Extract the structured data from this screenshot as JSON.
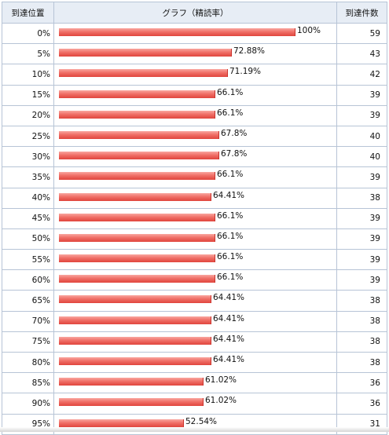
{
  "header": {
    "col_position": "到達位置",
    "col_graph": "グラフ（精読率）",
    "col_count": "到達件数"
  },
  "bar_color": "#f07068",
  "chart_data": {
    "type": "bar",
    "orientation": "horizontal",
    "columns": [
      "到達位置",
      "グラフ（精読率）",
      "到達件数"
    ],
    "categories": [
      "0%",
      "5%",
      "10%",
      "15%",
      "20%",
      "25%",
      "30%",
      "35%",
      "40%",
      "45%",
      "50%",
      "55%",
      "60%",
      "65%",
      "70%",
      "75%",
      "80%",
      "85%",
      "90%",
      "95%"
    ],
    "value_labels": [
      "100%",
      "72.88%",
      "71.19%",
      "66.1%",
      "66.1%",
      "67.8%",
      "67.8%",
      "66.1%",
      "64.41%",
      "66.1%",
      "66.1%",
      "66.1%",
      "66.1%",
      "64.41%",
      "64.41%",
      "64.41%",
      "64.41%",
      "61.02%",
      "61.02%",
      "52.54%"
    ],
    "values": [
      100,
      72.88,
      71.19,
      66.1,
      66.1,
      67.8,
      67.8,
      66.1,
      64.41,
      66.1,
      66.1,
      66.1,
      66.1,
      64.41,
      64.41,
      64.41,
      64.41,
      61.02,
      61.02,
      52.54
    ],
    "counts": [
      "59",
      "43",
      "42",
      "39",
      "39",
      "40",
      "40",
      "39",
      "38",
      "39",
      "39",
      "39",
      "39",
      "38",
      "38",
      "38",
      "38",
      "36",
      "36",
      "31"
    ],
    "xlim": [
      0,
      100
    ]
  }
}
